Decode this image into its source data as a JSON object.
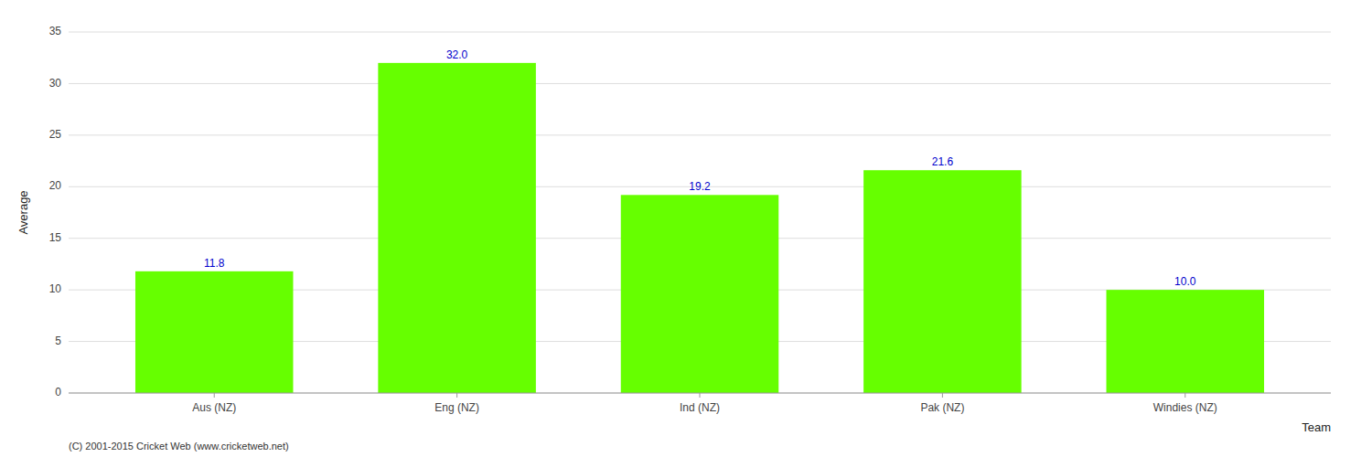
{
  "chart_data": {
    "type": "bar",
    "categories": [
      "Aus (NZ)",
      "Eng (NZ)",
      "Ind (NZ)",
      "Pak (NZ)",
      "Windies (NZ)"
    ],
    "values": [
      11.8,
      32.0,
      19.2,
      21.6,
      10.0
    ],
    "value_labels": [
      "11.8",
      "32.0",
      "19.2",
      "21.6",
      "10.0"
    ],
    "color": "#66ff00",
    "xlabel": "Team",
    "ylabel": "Average",
    "ylim": [
      0,
      35
    ],
    "yticks": [
      0,
      5,
      10,
      15,
      20,
      25,
      30,
      35
    ],
    "grid": true,
    "data_labels": true,
    "annotations": [
      "(C) 2001-2015 Cricket Web (www.cricketweb.net)"
    ]
  }
}
